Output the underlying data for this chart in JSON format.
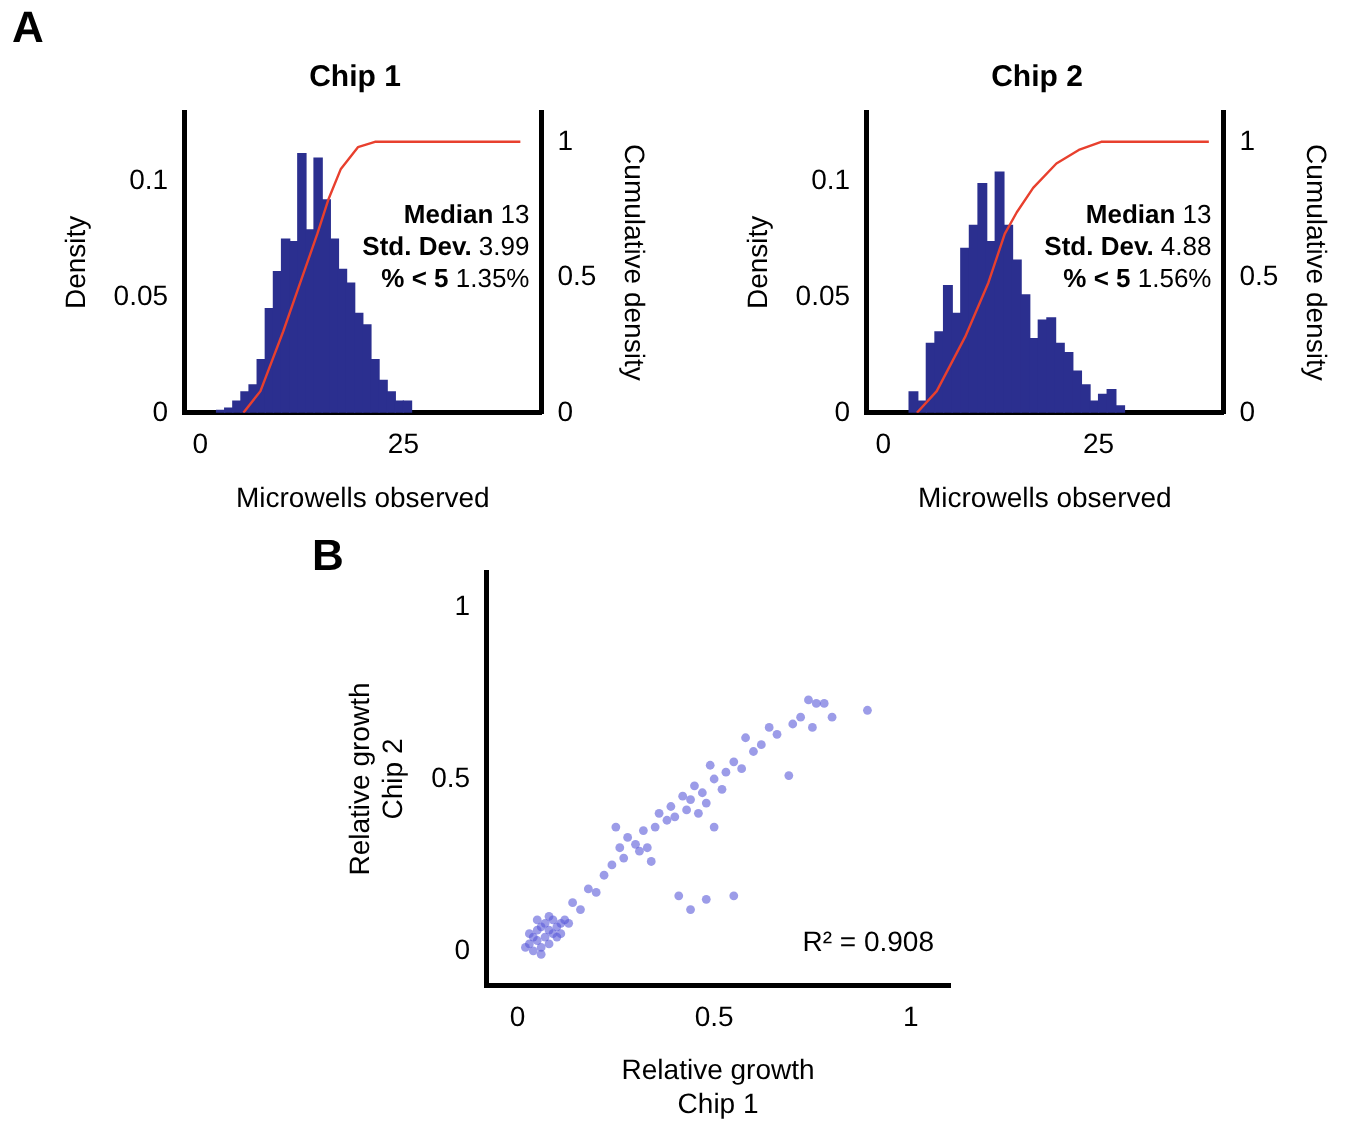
{
  "chart_data": [
    {
      "type": "histogram",
      "title": "Chip 1",
      "xlabel": "Microwells observed",
      "ylabel": "Density",
      "y2label": "Cumulative density",
      "bins": [
        2,
        3,
        4,
        5,
        6,
        7,
        8,
        9,
        10,
        11,
        12,
        13,
        14,
        15,
        16,
        17,
        18,
        19,
        20,
        21,
        22,
        23,
        24,
        25,
        26
      ],
      "values": [
        0.001,
        0.002,
        0.005,
        0.009,
        0.012,
        0.023,
        0.045,
        0.061,
        0.075,
        0.074,
        0.112,
        0.079,
        0.11,
        0.092,
        0.075,
        0.062,
        0.056,
        0.043,
        0.038,
        0.023,
        0.014,
        0.009,
        0.005,
        0.005
      ],
      "color": "#2b2f8f",
      "series": [
        {
          "type": "line",
          "axis": "y2",
          "color": "#e8402e",
          "marker": "none",
          "x": [
            5.3,
            7.4,
            10.2,
            12.3,
            14.4,
            15.8,
            17.3,
            19.4,
            21.5,
            25.4,
            39.4
          ],
          "values": [
            0,
            0.08,
            0.3,
            0.48,
            0.66,
            0.79,
            0.9,
            0.98,
            1,
            1,
            1
          ]
        }
      ],
      "xlim": [
        -2,
        42
      ],
      "xticks": [
        0,
        25
      ],
      "ylim": [
        0,
        0.13
      ],
      "yticks": [
        0,
        0.05,
        0.1
      ],
      "y2lim": [
        0,
        1.11
      ],
      "y2ticks": [
        0,
        0.5,
        1
      ],
      "annotations": [
        "A",
        "Median 13",
        "Std. Dev. 3.99",
        "% < 5 1.35%"
      ]
    },
    {
      "type": "histogram",
      "title": "Chip 2",
      "xlabel": "Microwells observed",
      "ylabel": "Density",
      "y2label": "Cumulative density",
      "bins": [
        3,
        4,
        5,
        6,
        7,
        8,
        9,
        10,
        11,
        12,
        13,
        14,
        15,
        16,
        17,
        18,
        19,
        20,
        21,
        22,
        23,
        24,
        25,
        26,
        27,
        28
      ],
      "values": [
        0.009,
        0.005,
        0.03,
        0.035,
        0.055,
        0.043,
        0.071,
        0.081,
        0.099,
        0.074,
        0.104,
        0.081,
        0.066,
        0.051,
        0.032,
        0.04,
        0.041,
        0.03,
        0.026,
        0.018,
        0.012,
        0.005,
        0.008,
        0.01,
        0.003
      ],
      "color": "#2b2f8f",
      "series": [
        {
          "type": "line",
          "axis": "y2",
          "color": "#e8402e",
          "marker": "none",
          "x": [
            3.9,
            6.2,
            9.5,
            12.2,
            14.1,
            15.5,
            17.4,
            20.1,
            22.7,
            25.3,
            37.8
          ],
          "values": [
            0,
            0.08,
            0.28,
            0.48,
            0.66,
            0.74,
            0.83,
            0.92,
            0.97,
            1,
            1
          ]
        }
      ],
      "xlim": [
        -2,
        39.5
      ],
      "xticks": [
        0,
        25
      ],
      "ylim": [
        0,
        0.13
      ],
      "yticks": [
        0,
        0.05,
        0.1
      ],
      "y2lim": [
        0,
        1.11
      ],
      "y2ticks": [
        0,
        0.5,
        1
      ],
      "annotations": [
        "Median 13",
        "Std. Dev. 4.88",
        "% < 5 1.56%"
      ]
    },
    {
      "type": "scatter",
      "xlabel": "Relative growth\nChip 1",
      "ylabel": "Relative growth\nChip 2",
      "marker": "circle",
      "series": [
        {
          "color": "#5a5ad8",
          "x": [
            0.03,
            0.04,
            0.05,
            0.06,
            0.07,
            0.08,
            0.09,
            0.1,
            0.11,
            0.12,
            0.05,
            0.07,
            0.09,
            0.03,
            0.06,
            0.04,
            0.08,
            0.1,
            0.02,
            0.11,
            0.06,
            0.08,
            0.13,
            0.05,
            0.14,
            0.16,
            0.18,
            0.2,
            0.22,
            0.24,
            0.25,
            0.26,
            0.27,
            0.28,
            0.3,
            0.31,
            0.32,
            0.33,
            0.35,
            0.36,
            0.38,
            0.39,
            0.4,
            0.42,
            0.43,
            0.44,
            0.45,
            0.46,
            0.47,
            0.48,
            0.5,
            0.49,
            0.52,
            0.53,
            0.55,
            0.57,
            0.58,
            0.6,
            0.62,
            0.64,
            0.66,
            0.69,
            0.7,
            0.72,
            0.75,
            0.76,
            0.78,
            0.8,
            0.89,
            0.74,
            0.5,
            0.34,
            0.41,
            0.48,
            0.55,
            0.44
          ],
          "values": [
            0.02,
            0,
            0.03,
            0.01,
            0.04,
            0.02,
            0.05,
            0.07,
            0.08,
            0.09,
            0.06,
            0.08,
            0.09,
            0.05,
            0.07,
            0.04,
            0.06,
            0.04,
            0.01,
            0.05,
            -0.01,
            0.1,
            0.08,
            0.09,
            0.14,
            0.12,
            0.18,
            0.17,
            0.22,
            0.25,
            0.36,
            0.3,
            0.27,
            0.33,
            0.31,
            0.29,
            0.35,
            0.3,
            0.36,
            0.4,
            0.38,
            0.42,
            0.39,
            0.45,
            0.41,
            0.44,
            0.48,
            0.4,
            0.46,
            0.43,
            0.5,
            0.54,
            0.47,
            0.52,
            0.55,
            0.53,
            0.62,
            0.58,
            0.6,
            0.65,
            0.63,
            0.51,
            0.66,
            0.68,
            0.65,
            0.72,
            0.72,
            0.68,
            0.7,
            0.73,
            0.36,
            0.26,
            0.16,
            0.15,
            0.16,
            0.12
          ]
        }
      ],
      "xlim": [
        -0.08,
        1.1
      ],
      "xticks": [
        0,
        0.5,
        1
      ],
      "ylim": [
        -0.1,
        1.1
      ],
      "yticks": [
        0,
        0.5,
        1
      ],
      "annotations": [
        "B",
        "R² = 0.908"
      ]
    }
  ]
}
